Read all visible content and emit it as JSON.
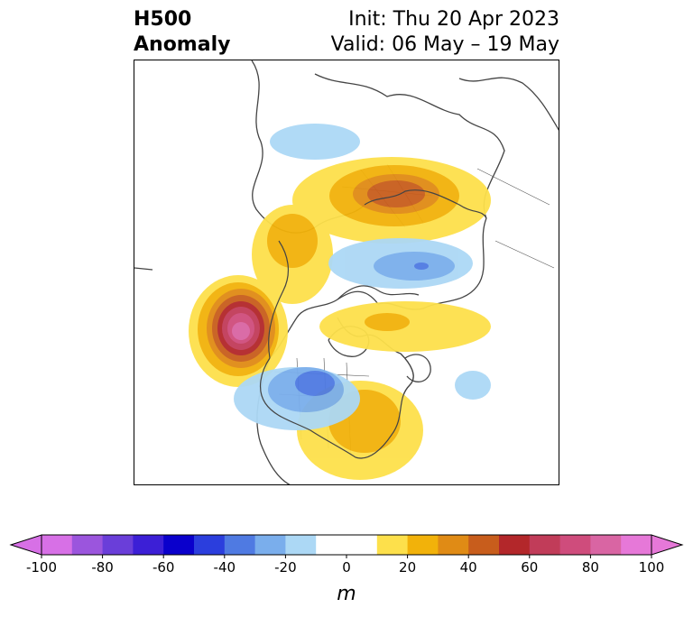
{
  "header": {
    "title_line1": "H500",
    "title_line2": "Anomaly",
    "init_text": "Init: Thu 20 Apr 2023",
    "valid_text": "Valid: 06 May – 19 May"
  },
  "colorbar": {
    "unit": "m",
    "ticks": [
      "-100",
      "-80",
      "-60",
      "-40",
      "-20",
      "0",
      "20",
      "40",
      "60",
      "80",
      "100"
    ],
    "negative_colors": [
      "#d770e6",
      "#9b55dd",
      "#6a3ed9",
      "#3c1fd6",
      "#0a00cc",
      "#2b3edd",
      "#4f7ae2",
      "#7aaeec",
      "#acd8f5"
    ],
    "neutral_color": "#ffffff",
    "positive_colors": [
      "#fde04b",
      "#f2b20a",
      "#e08b15",
      "#c85d1c",
      "#b3272a",
      "#c13c59",
      "#cf4c7c",
      "#d965a3",
      "#e678d8"
    ]
  },
  "map_legend_colors": {
    "land_lines": "#444444"
  }
}
